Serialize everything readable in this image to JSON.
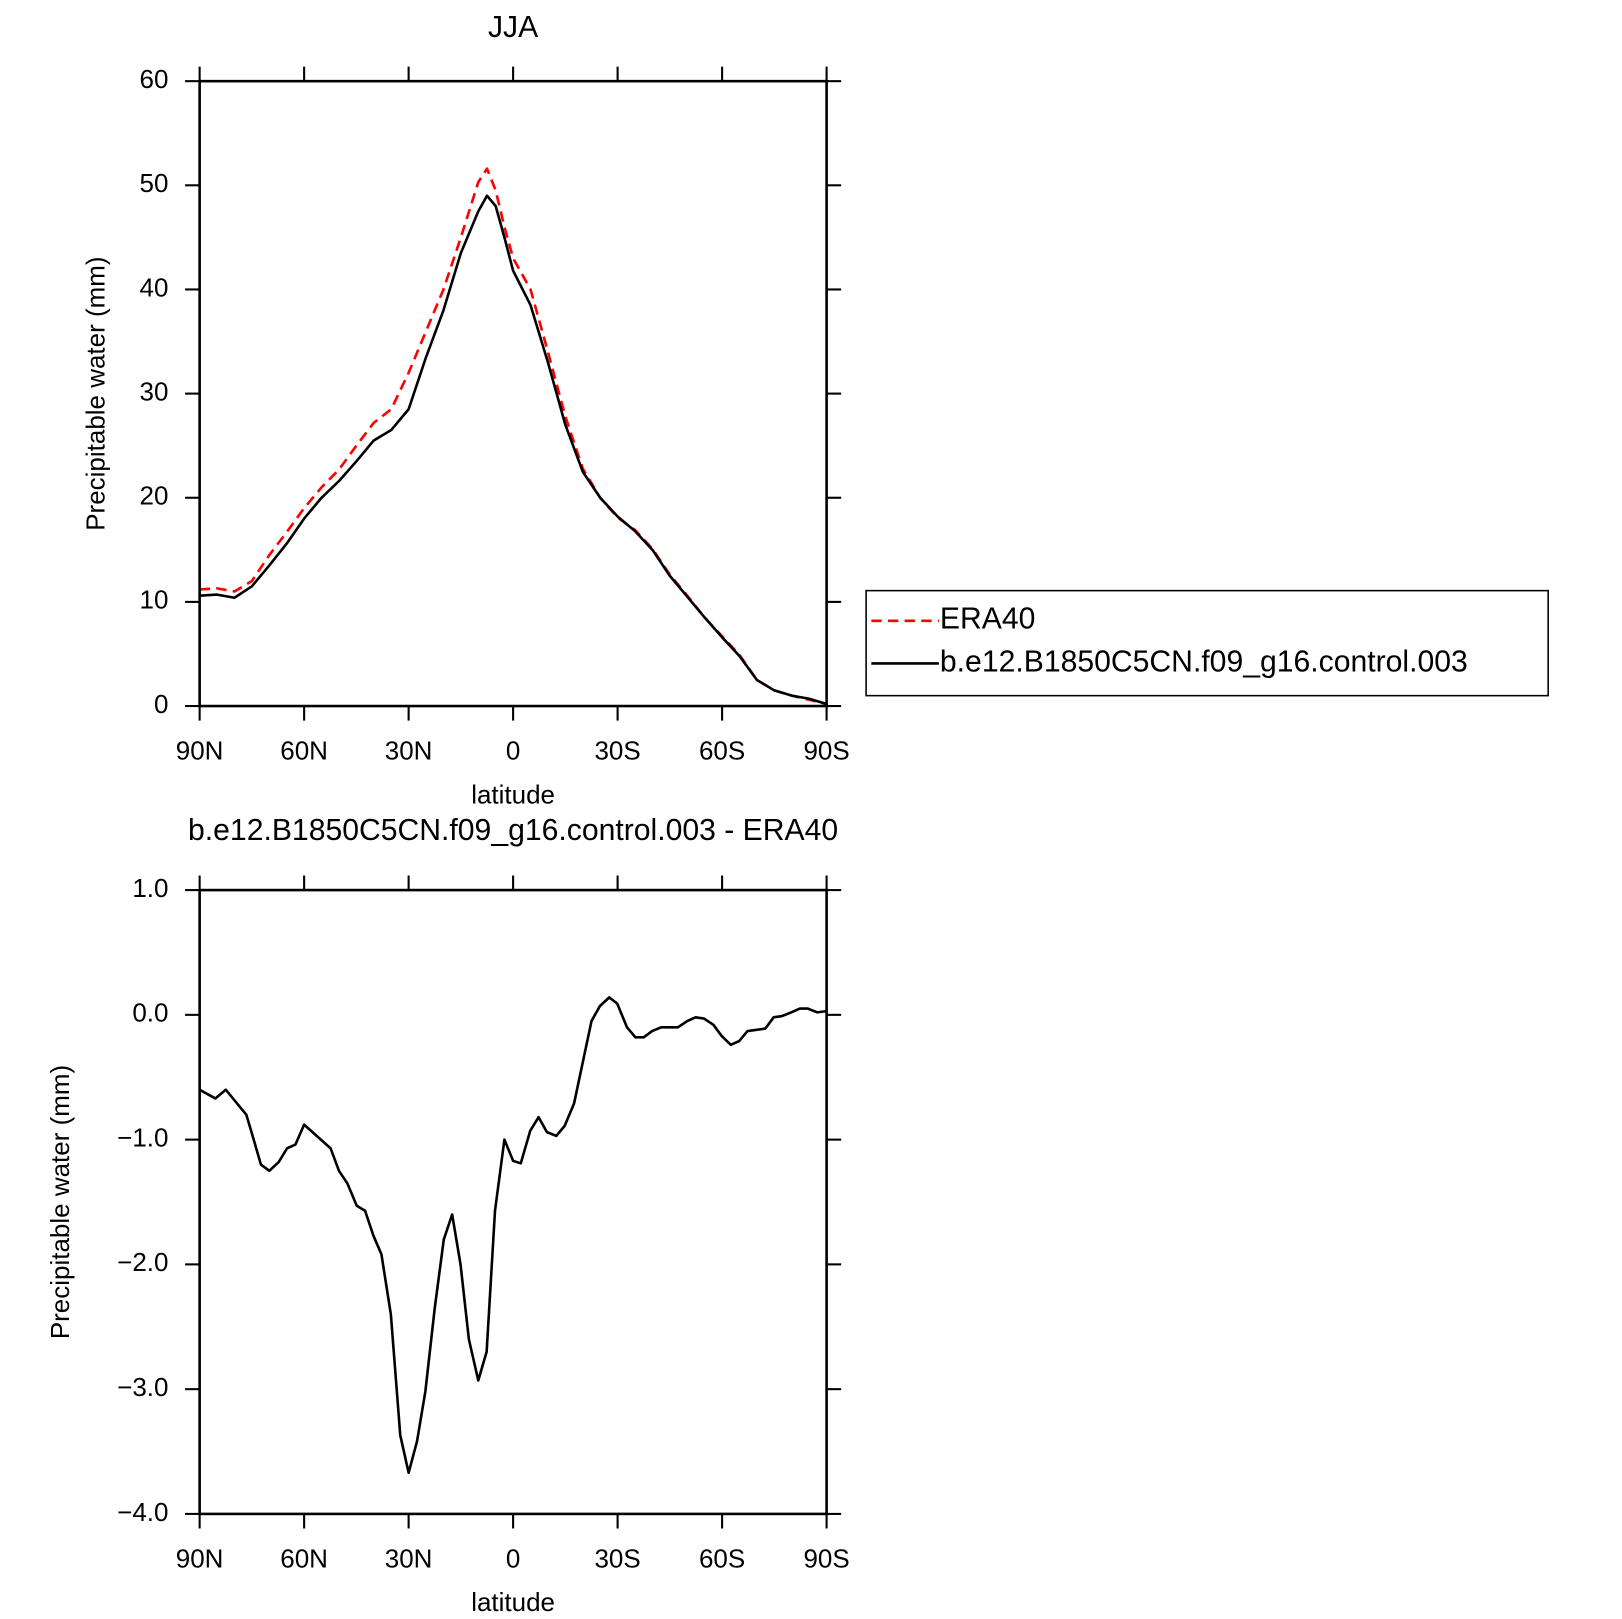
{
  "chart_data": [
    {
      "type": "line",
      "title": "JJA",
      "xlabel": "latitude",
      "ylabel": "Precipitable water (mm)",
      "x": [
        90,
        85,
        80,
        75,
        70,
        65,
        60,
        55,
        50,
        45,
        40,
        35,
        30,
        25,
        20,
        15,
        10,
        7.5,
        5,
        2.5,
        0,
        -5,
        -10,
        -15,
        -20,
        -25,
        -30,
        -35,
        -40,
        -45,
        -50,
        -55,
        -60,
        -65,
        -70,
        -75,
        -80,
        -85,
        -90
      ],
      "series": [
        {
          "name": "ERA40",
          "color": "#ff0000",
          "dash": "dashed",
          "values": [
            11.2,
            11.3,
            11.0,
            12.0,
            14.5,
            16.7,
            19.0,
            21.0,
            22.7,
            25.0,
            27.2,
            28.5,
            32,
            36,
            40,
            45,
            50.3,
            51.6,
            49.5,
            46,
            43,
            40,
            34,
            27.8,
            22.8,
            20,
            18.1,
            16.9,
            15.1,
            12.6,
            10.6,
            8.5,
            6.7,
            4.9,
            2.5,
            1.5,
            1.0,
            0.6,
            0.2
          ]
        },
        {
          "name": "b.e12.B1850C5CN.f09_g16.control.003",
          "color": "#000000",
          "dash": "solid",
          "values": [
            10.6,
            10.7,
            10.4,
            11.5,
            13.5,
            15.6,
            18.0,
            20.0,
            21.6,
            23.5,
            25.5,
            26.5,
            28.5,
            33.5,
            38,
            43.5,
            47.5,
            49,
            48,
            45,
            41.8,
            38.5,
            33,
            27,
            22.5,
            20,
            18.2,
            16.8,
            15,
            12.5,
            10.5,
            8.5,
            6.6,
            4.8,
            2.5,
            1.5,
            1.0,
            0.7,
            0.2
          ]
        }
      ],
      "xlim": [
        90,
        -90
      ],
      "xticks": [
        {
          "value": 90,
          "label": "90N"
        },
        {
          "value": 60,
          "label": "60N"
        },
        {
          "value": 30,
          "label": "30N"
        },
        0,
        {
          "value": -30,
          "label": "30S"
        },
        {
          "value": -60,
          "label": "60S"
        },
        {
          "value": -90,
          "label": "90S"
        }
      ],
      "ylim": [
        0,
        60
      ],
      "yticks": [
        0,
        10,
        20,
        30,
        40,
        50,
        60
      ],
      "legend": "right"
    },
    {
      "type": "line",
      "title": "b.e12.B1850C5CN.f09_g16.control.003 - ERA40",
      "xlabel": "latitude",
      "ylabel": "Precipitable water (mm)",
      "x": [
        90,
        85.5,
        82.5,
        76.6,
        75,
        72.4,
        70,
        67.3,
        64.9,
        62.5,
        60,
        52.4,
        50,
        47.6,
        44.9,
        42.5,
        40.1,
        37.8,
        35.1,
        32.4,
        30,
        27.6,
        25.2,
        22.5,
        19.9,
        17.5,
        15.1,
        12.7,
        10,
        7.6,
        5.2,
        2.5,
        0,
        -2.2,
        -4.9,
        -7.3,
        -9.7,
        -12.4,
        -14.8,
        -17.5,
        -22.5,
        -24.9,
        -27.6,
        -29.9,
        -32.7,
        -35.1,
        -37.5,
        -39.9,
        -42.5,
        -47.3,
        -50,
        -52.4,
        -54.8,
        -57.5,
        -59.9,
        -62.5,
        -64.9,
        -67.3,
        -72.4,
        -74.8,
        -77.2,
        -79.9,
        -82.3,
        -84.6,
        -87.3,
        -90
      ],
      "series": [
        {
          "name": "b.e12.B1850C5CN.f09_g16.control.003 - ERA40",
          "color": "#000000",
          "dash": "solid",
          "values": [
            -0.6,
            -0.67,
            -0.6,
            -0.8,
            -0.95,
            -1.2,
            -1.25,
            -1.18,
            -1.07,
            -1.04,
            -0.88,
            -1.07,
            -1.25,
            -1.35,
            -1.53,
            -1.57,
            -1.77,
            -1.92,
            -2.4,
            -3.37,
            -3.67,
            -3.42,
            -3.02,
            -2.35,
            -1.8,
            -1.6,
            -2.0,
            -2.6,
            -2.93,
            -2.7,
            -1.57,
            -1.0,
            -1.17,
            -1.19,
            -0.93,
            -0.82,
            -0.94,
            -0.97,
            -0.89,
            -0.71,
            -0.05,
            0.07,
            0.14,
            0.09,
            -0.1,
            -0.18,
            -0.18,
            -0.13,
            -0.1,
            -0.1,
            -0.05,
            -0.02,
            -0.03,
            -0.08,
            -0.17,
            -0.24,
            -0.21,
            -0.13,
            -0.11,
            -0.02,
            -0.01,
            0.02,
            0.05,
            0.05,
            0.02,
            0.03
          ]
        }
      ],
      "xlim": [
        90,
        -90
      ],
      "xticks": [
        {
          "value": 90,
          "label": "90N"
        },
        {
          "value": 60,
          "label": "60N"
        },
        {
          "value": 30,
          "label": "30N"
        },
        0,
        {
          "value": -30,
          "label": "30S"
        },
        {
          "value": -60,
          "label": "60S"
        },
        {
          "value": -90,
          "label": "90S"
        }
      ],
      "ylim": [
        -4,
        1
      ],
      "yticks": [
        {
          "value": -4,
          "label": "−4.0"
        },
        {
          "value": -3,
          "label": "−3.0"
        },
        {
          "value": -2,
          "label": "−2.0"
        },
        {
          "value": -1,
          "label": "−1.0"
        },
        {
          "value": 0,
          "label": "0.0"
        },
        {
          "value": 1,
          "label": "1.0"
        }
      ]
    }
  ]
}
